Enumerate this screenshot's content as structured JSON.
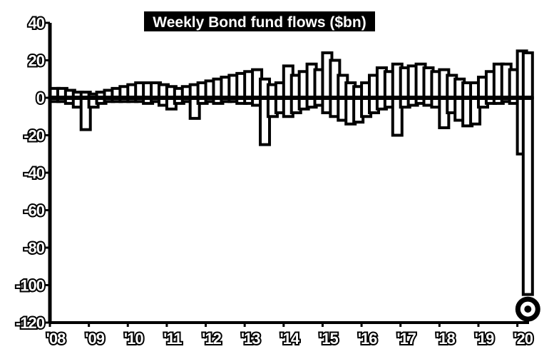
{
  "chart_data": {
    "type": "bar",
    "title": "Weekly Bond fund flows ($bn)",
    "xlabel": "",
    "ylabel": "",
    "ylim": [
      -120,
      40
    ],
    "yticks": [
      40,
      20,
      0,
      -20,
      -40,
      -60,
      -80,
      -100,
      -120
    ],
    "ytick_labels": [
      "40",
      "20",
      "0",
      "-20",
      "-40",
      "-60",
      "-80",
      "-100",
      "-120"
    ],
    "xlim": [
      2008.0,
      2020.3
    ],
    "xticks": [
      2008,
      2009,
      2010,
      2011,
      2012,
      2013,
      2014,
      2015,
      2016,
      2017,
      2018,
      2019,
      2020
    ],
    "xtick_labels": [
      "'08",
      "'09",
      "'10",
      "'11",
      "'12",
      "'13",
      "'14",
      "'15",
      "'16",
      "'17",
      "'18",
      "'19",
      "'20"
    ],
    "grid": false,
    "legend": "none",
    "colors": {
      "bar": "#ffffff",
      "outline": "#000000",
      "background": "#ffffff",
      "marker": "#000000"
    },
    "series": [
      {
        "values_positive": [
          [
            2008.0,
            5
          ],
          [
            2008.2,
            5
          ],
          [
            2008.4,
            4
          ],
          [
            2008.6,
            3
          ],
          [
            2008.8,
            3
          ],
          [
            2009.0,
            2
          ],
          [
            2009.2,
            3
          ],
          [
            2009.4,
            4
          ],
          [
            2009.6,
            5
          ],
          [
            2009.8,
            6
          ],
          [
            2010.0,
            7
          ],
          [
            2010.2,
            8
          ],
          [
            2010.4,
            8
          ],
          [
            2010.6,
            8
          ],
          [
            2010.8,
            7
          ],
          [
            2011.0,
            6
          ],
          [
            2011.2,
            5
          ],
          [
            2011.4,
            6
          ],
          [
            2011.6,
            7
          ],
          [
            2011.8,
            8
          ],
          [
            2012.0,
            9
          ],
          [
            2012.2,
            10
          ],
          [
            2012.4,
            11
          ],
          [
            2012.6,
            12
          ],
          [
            2012.8,
            13
          ],
          [
            2013.0,
            14
          ],
          [
            2013.2,
            15
          ],
          [
            2013.4,
            10
          ],
          [
            2013.6,
            7
          ],
          [
            2013.8,
            8
          ],
          [
            2014.0,
            17
          ],
          [
            2014.2,
            12
          ],
          [
            2014.4,
            14
          ],
          [
            2014.6,
            18
          ],
          [
            2014.8,
            15
          ],
          [
            2015.0,
            24
          ],
          [
            2015.2,
            20
          ],
          [
            2015.4,
            12
          ],
          [
            2015.6,
            8
          ],
          [
            2015.8,
            6
          ],
          [
            2016.0,
            8
          ],
          [
            2016.2,
            12
          ],
          [
            2016.4,
            16
          ],
          [
            2016.6,
            14
          ],
          [
            2016.8,
            18
          ],
          [
            2017.0,
            16
          ],
          [
            2017.2,
            17
          ],
          [
            2017.4,
            18
          ],
          [
            2017.6,
            16
          ],
          [
            2017.8,
            14
          ],
          [
            2018.0,
            15
          ],
          [
            2018.2,
            12
          ],
          [
            2018.4,
            10
          ],
          [
            2018.6,
            8
          ],
          [
            2018.8,
            8
          ],
          [
            2019.0,
            11
          ],
          [
            2019.2,
            14
          ],
          [
            2019.4,
            18
          ],
          [
            2019.6,
            18
          ],
          [
            2019.8,
            15
          ],
          [
            2020.0,
            25
          ],
          [
            2020.15,
            24
          ]
        ],
        "values_negative": [
          [
            2008.0,
            -2
          ],
          [
            2008.2,
            -2
          ],
          [
            2008.4,
            -3
          ],
          [
            2008.6,
            -5
          ],
          [
            2008.8,
            -17
          ],
          [
            2009.0,
            -5
          ],
          [
            2009.2,
            -3
          ],
          [
            2009.4,
            -2
          ],
          [
            2009.6,
            -2
          ],
          [
            2009.8,
            -2
          ],
          [
            2010.0,
            -2
          ],
          [
            2010.2,
            -2
          ],
          [
            2010.4,
            -3
          ],
          [
            2010.6,
            -2
          ],
          [
            2010.8,
            -4
          ],
          [
            2011.0,
            -6
          ],
          [
            2011.2,
            -3
          ],
          [
            2011.4,
            -2
          ],
          [
            2011.6,
            -11
          ],
          [
            2011.8,
            -3
          ],
          [
            2012.0,
            -2
          ],
          [
            2012.2,
            -3
          ],
          [
            2012.4,
            -2
          ],
          [
            2012.6,
            -2
          ],
          [
            2012.8,
            -3
          ],
          [
            2013.0,
            -3
          ],
          [
            2013.2,
            -4
          ],
          [
            2013.4,
            -25
          ],
          [
            2013.6,
            -10
          ],
          [
            2013.8,
            -8
          ],
          [
            2014.0,
            -10
          ],
          [
            2014.2,
            -8
          ],
          [
            2014.4,
            -6
          ],
          [
            2014.6,
            -5
          ],
          [
            2014.8,
            -4
          ],
          [
            2015.0,
            -8
          ],
          [
            2015.2,
            -10
          ],
          [
            2015.4,
            -12
          ],
          [
            2015.6,
            -14
          ],
          [
            2015.8,
            -13
          ],
          [
            2016.0,
            -10
          ],
          [
            2016.2,
            -8
          ],
          [
            2016.4,
            -6
          ],
          [
            2016.6,
            -5
          ],
          [
            2016.8,
            -20
          ],
          [
            2017.0,
            -5
          ],
          [
            2017.2,
            -4
          ],
          [
            2017.4,
            -3
          ],
          [
            2017.6,
            -4
          ],
          [
            2017.8,
            -5
          ],
          [
            2018.0,
            -16
          ],
          [
            2018.2,
            -8
          ],
          [
            2018.4,
            -12
          ],
          [
            2018.6,
            -15
          ],
          [
            2018.8,
            -14
          ],
          [
            2019.0,
            -5
          ],
          [
            2019.2,
            -3
          ],
          [
            2019.4,
            -3
          ],
          [
            2019.6,
            -2
          ],
          [
            2019.8,
            -3
          ],
          [
            2020.0,
            -30
          ],
          [
            2020.15,
            -105
          ]
        ]
      }
    ],
    "annotations": [
      {
        "type": "marker",
        "x": 2020.15,
        "y": -109
      }
    ]
  }
}
